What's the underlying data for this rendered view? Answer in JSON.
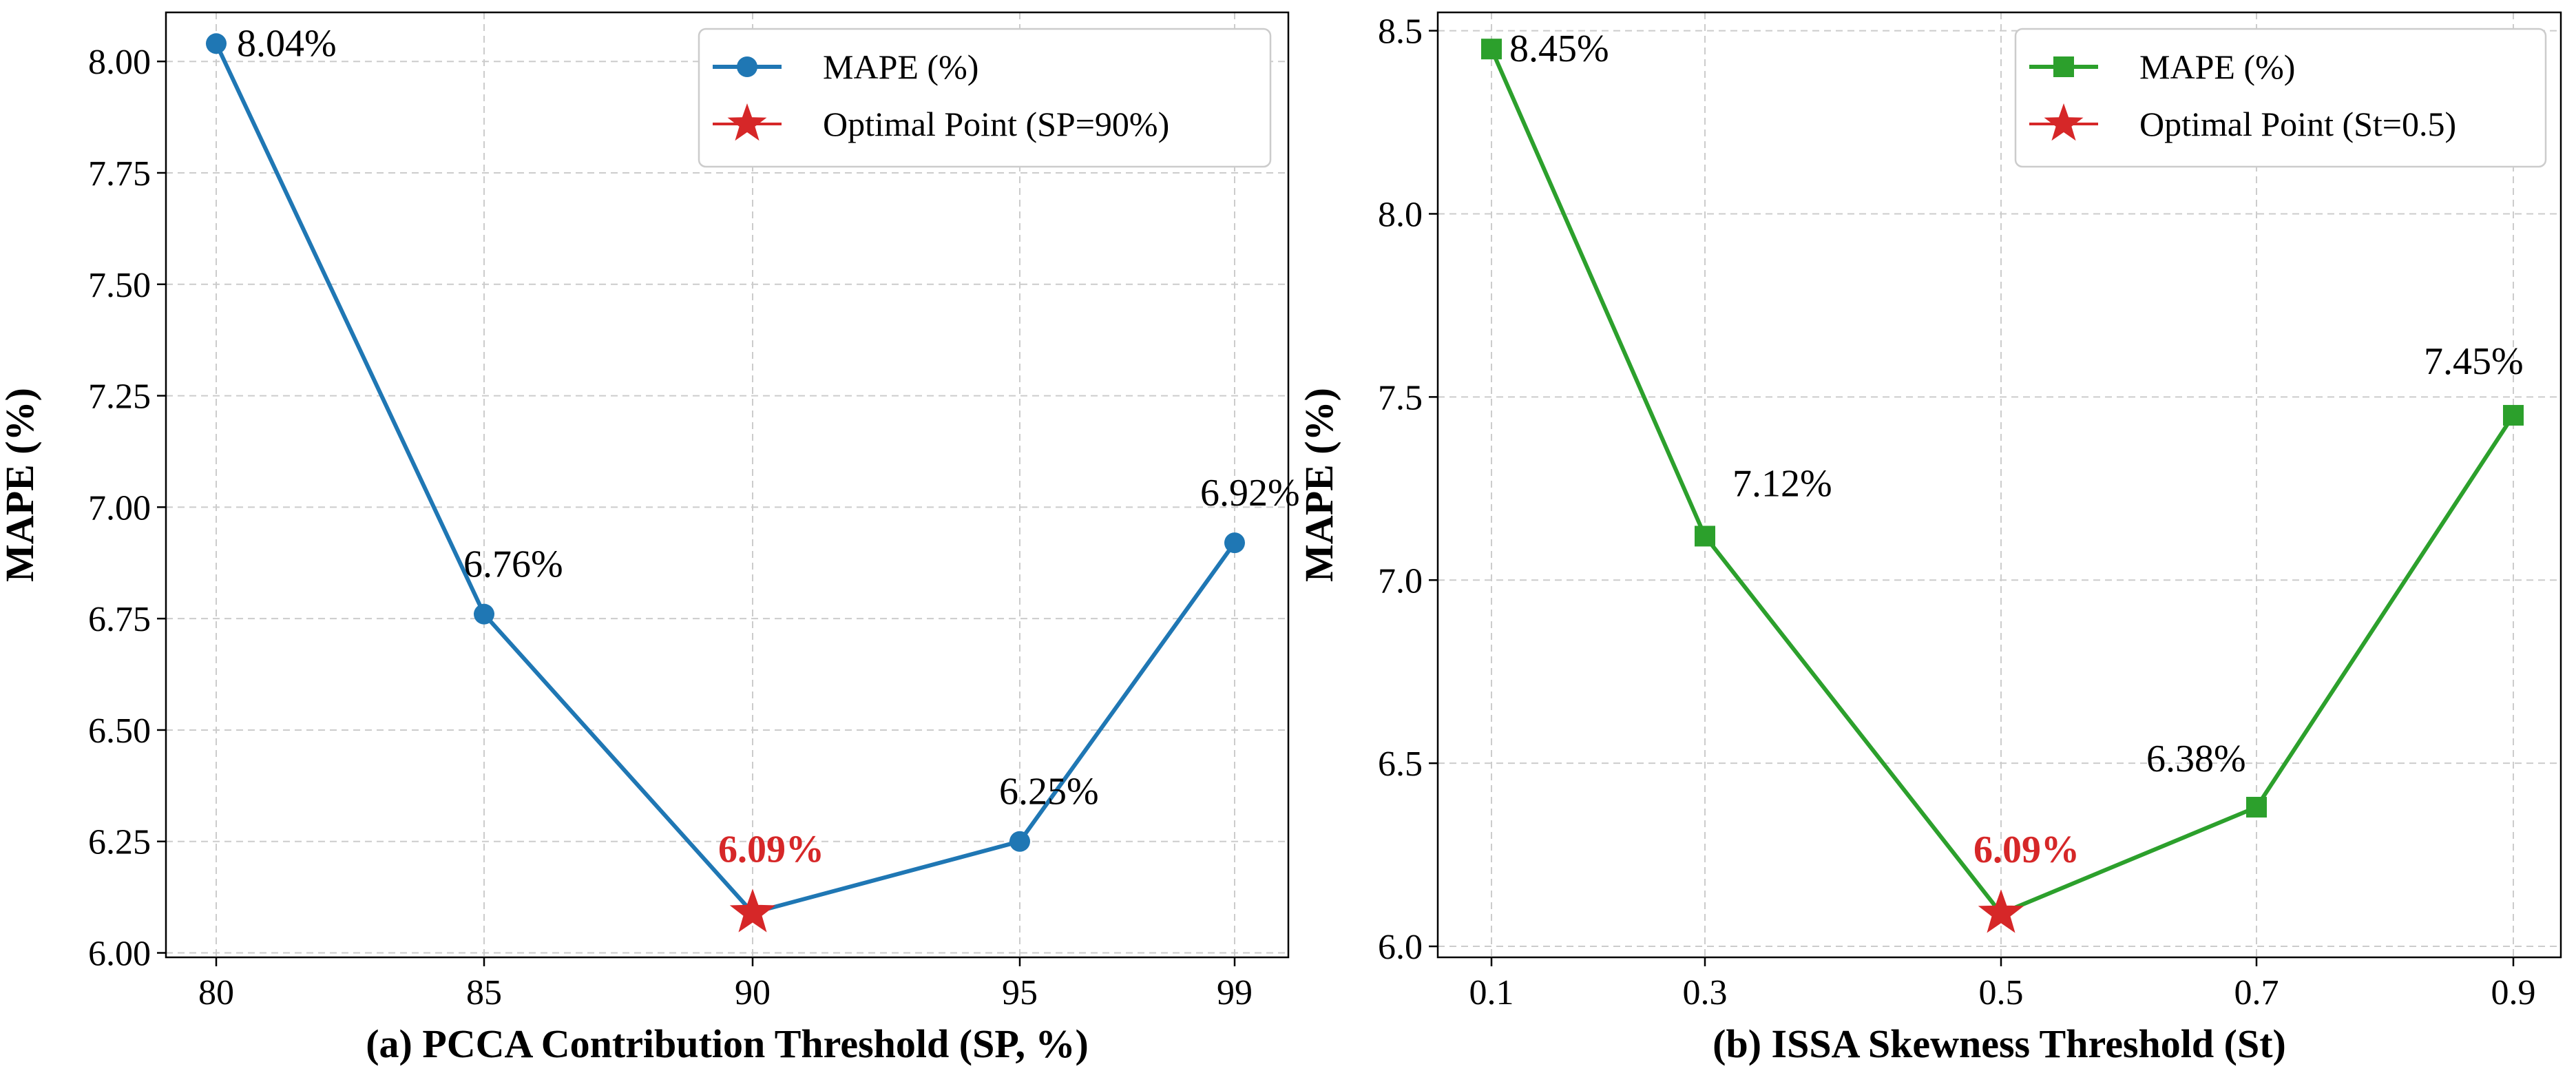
{
  "chart_data": [
    {
      "id": "a",
      "type": "line",
      "xlabel": "(a) PCCA Contribution Threshold (SP, %)",
      "ylabel": "MAPE (%)",
      "categories": [
        "80",
        "85",
        "90",
        "95",
        "99"
      ],
      "y_ticks": [
        "6.00",
        "6.25",
        "6.50",
        "6.75",
        "7.00",
        "7.25",
        "7.50",
        "7.75",
        "8.00"
      ],
      "ylim": [
        5.99,
        8.11
      ],
      "series": [
        {
          "name": "MAPE (%)",
          "values": [
            8.04,
            6.76,
            6.09,
            6.25,
            6.92
          ],
          "labels": [
            "8.04%",
            "6.76%",
            "6.09%",
            "6.25%",
            "6.92%"
          ],
          "color": "#1f77b4",
          "marker": "circle"
        }
      ],
      "optimal": {
        "name": "Optimal Point (SP=90%)",
        "index": 2,
        "value": 6.09,
        "label": "6.09%",
        "color": "#d62728"
      },
      "grid": true,
      "legend_position": "upper right"
    },
    {
      "id": "b",
      "type": "line",
      "xlabel": "(b) ISSA Skewness Threshold (St)",
      "ylabel": "MAPE (%)",
      "categories": [
        "0.1",
        "0.3",
        "0.5",
        "0.7",
        "0.9"
      ],
      "y_ticks": [
        "6.0",
        "6.5",
        "7.0",
        "7.5",
        "8.0",
        "8.5"
      ],
      "ylim": [
        5.97,
        8.55
      ],
      "series": [
        {
          "name": "MAPE (%)",
          "values": [
            8.45,
            7.12,
            6.09,
            6.38,
            7.45
          ],
          "labels": [
            "8.45%",
            "7.12%",
            "6.09%",
            "6.38%",
            "7.45%"
          ],
          "color": "#2ca02c",
          "marker": "square"
        }
      ],
      "optimal": {
        "name": "Optimal Point (St=0.5)",
        "index": 2,
        "value": 6.09,
        "label": "6.09%",
        "color": "#d62728"
      },
      "grid": true,
      "legend_position": "upper right"
    }
  ]
}
